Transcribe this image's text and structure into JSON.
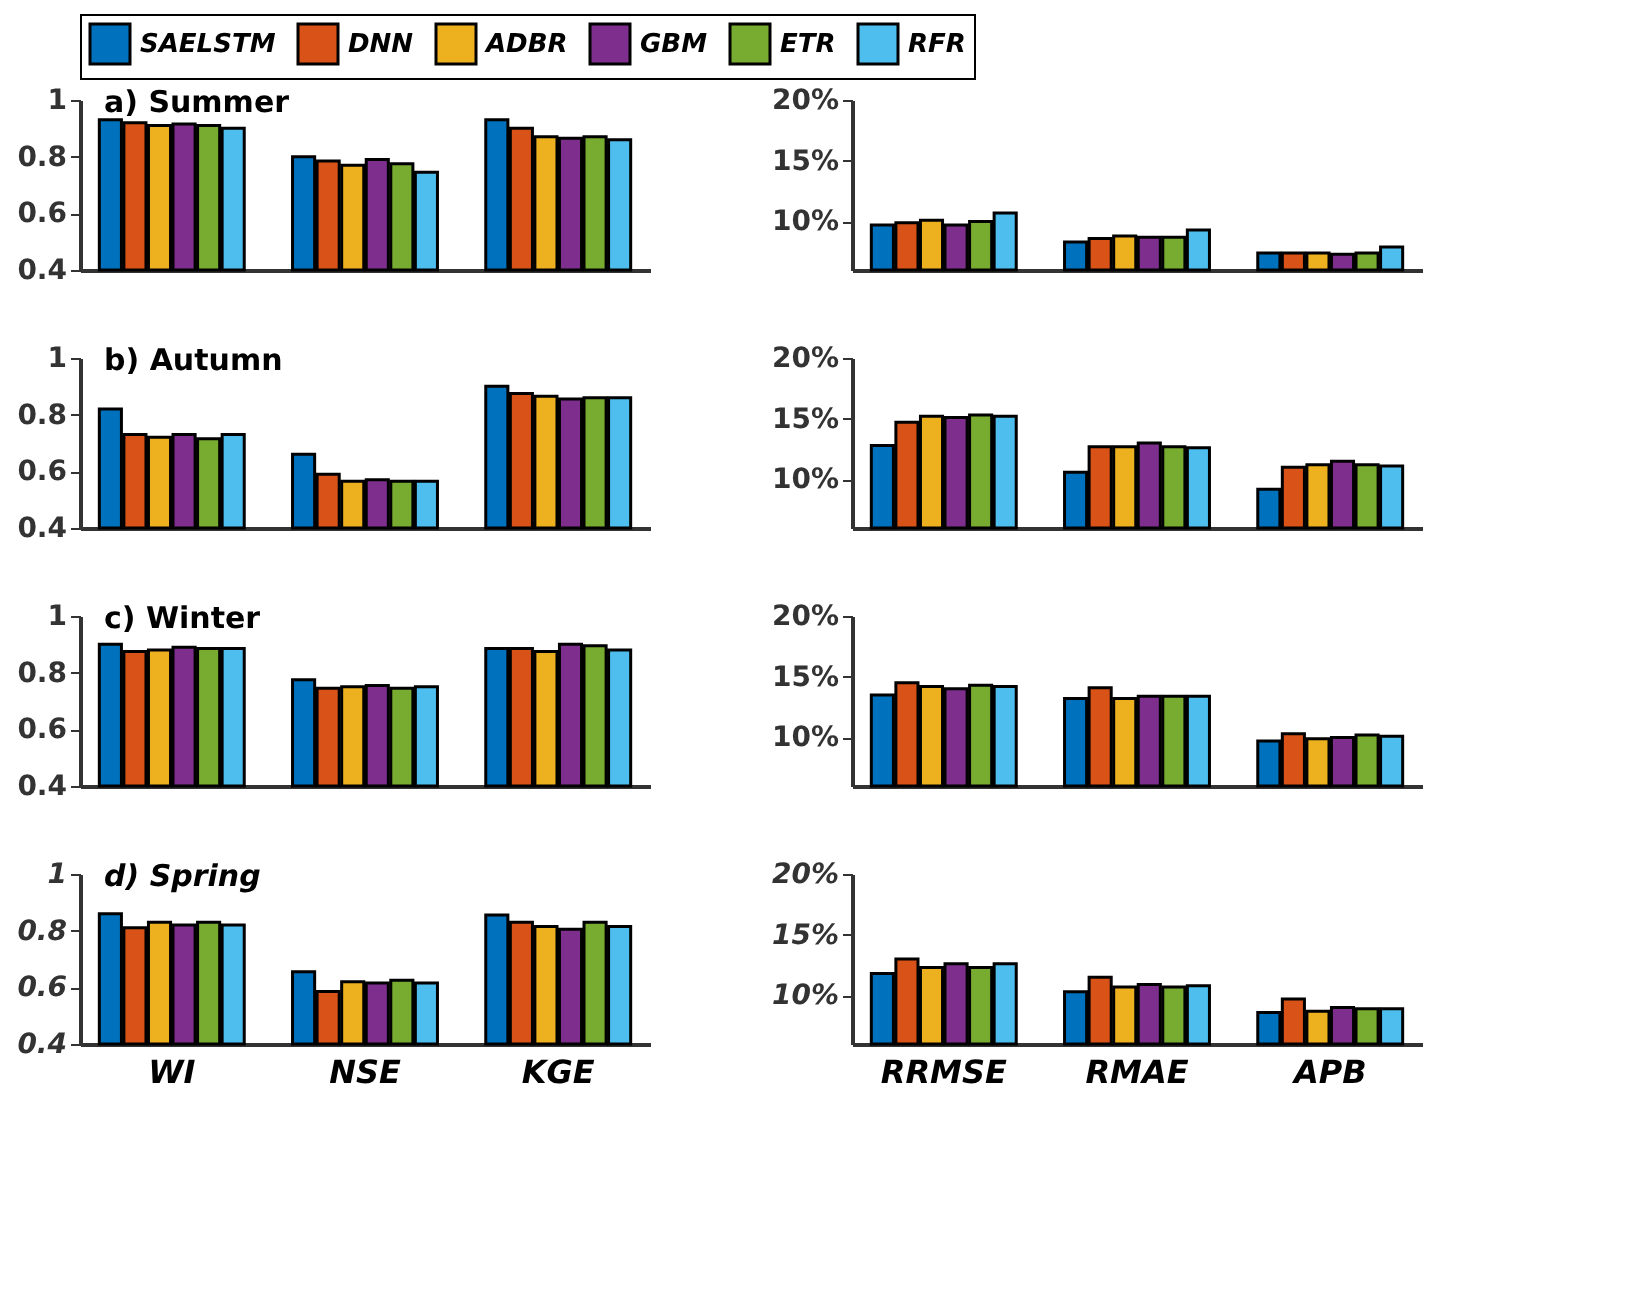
{
  "chart_data": [
    {
      "type": "bar",
      "title": "a) Summer",
      "categories": [
        null,
        null,
        null
      ],
      "ylim": [
        0.4,
        1
      ],
      "yticks": [
        0.4,
        0.6,
        0.8,
        1
      ],
      "tick_labels": "y",
      "legend": "top",
      "grid": false,
      "series": [
        {
          "name": "SAELSTM",
          "color": "#0072bd",
          "values": [
            0.93,
            0.8,
            0.93
          ]
        },
        {
          "name": "DNN",
          "color": "#d95319",
          "values": [
            0.92,
            0.785,
            0.9
          ]
        },
        {
          "name": "ADBR",
          "color": "#edb120",
          "values": [
            0.91,
            0.77,
            0.87
          ]
        },
        {
          "name": "GBM",
          "color": "#7e2f8e",
          "values": [
            0.915,
            0.79,
            0.865
          ]
        },
        {
          "name": "ETR",
          "color": "#77ac30",
          "values": [
            0.91,
            0.775,
            0.87
          ]
        },
        {
          "name": "RFR",
          "color": "#4dbeee",
          "values": [
            0.9,
            0.745,
            0.86
          ]
        }
      ]
    },
    {
      "type": "bar",
      "categories": [
        null,
        null,
        null
      ],
      "ylim": [
        6,
        20
      ],
      "yticks": [
        {
          "value": 10,
          "label": "10%"
        },
        {
          "value": 15,
          "label": "15%"
        },
        {
          "value": 20,
          "label": "20%"
        }
      ],
      "tick_labels": "y",
      "grid": false,
      "series": [
        {
          "color": "#0072bd",
          "values": [
            9.7,
            8.3,
            7.4
          ]
        },
        {
          "color": "#d95319",
          "values": [
            9.9,
            8.6,
            7.4
          ]
        },
        {
          "color": "#edb120",
          "values": [
            10.1,
            8.8,
            7.4
          ]
        },
        {
          "color": "#7e2f8e",
          "values": [
            9.7,
            8.7,
            7.3
          ]
        },
        {
          "color": "#77ac30",
          "values": [
            10.0,
            8.7,
            7.4
          ]
        },
        {
          "color": "#4dbeee",
          "values": [
            10.7,
            9.3,
            7.9
          ]
        }
      ]
    },
    {
      "type": "bar",
      "title": "b) Autumn",
      "categories": [
        null,
        null,
        null
      ],
      "ylim": [
        0.4,
        1
      ],
      "yticks": [
        0.4,
        0.6,
        0.8,
        1
      ],
      "tick_labels": "y",
      "grid": false,
      "series": [
        {
          "color": "#0072bd",
          "values": [
            0.82,
            0.66,
            0.9
          ]
        },
        {
          "color": "#d95319",
          "values": [
            0.73,
            0.59,
            0.875
          ]
        },
        {
          "color": "#edb120",
          "values": [
            0.72,
            0.565,
            0.865
          ]
        },
        {
          "color": "#7e2f8e",
          "values": [
            0.73,
            0.57,
            0.855
          ]
        },
        {
          "color": "#77ac30",
          "values": [
            0.715,
            0.565,
            0.86
          ]
        },
        {
          "color": "#4dbeee",
          "values": [
            0.73,
            0.565,
            0.86
          ]
        }
      ]
    },
    {
      "type": "bar",
      "categories": [
        null,
        null,
        null
      ],
      "ylim": [
        6,
        20
      ],
      "yticks": [
        {
          "value": 10,
          "label": "10%"
        },
        {
          "value": 15,
          "label": "15%"
        },
        {
          "value": 20,
          "label": "20%"
        }
      ],
      "tick_labels": "y",
      "grid": false,
      "series": [
        {
          "color": "#0072bd",
          "values": [
            12.8,
            10.6,
            9.2
          ]
        },
        {
          "color": "#d95319",
          "values": [
            14.7,
            12.7,
            11.0
          ]
        },
        {
          "color": "#edb120",
          "values": [
            15.2,
            12.7,
            11.2
          ]
        },
        {
          "color": "#7e2f8e",
          "values": [
            15.1,
            13.0,
            11.5
          ]
        },
        {
          "color": "#77ac30",
          "values": [
            15.3,
            12.7,
            11.2
          ]
        },
        {
          "color": "#4dbeee",
          "values": [
            15.2,
            12.6,
            11.1
          ]
        }
      ]
    },
    {
      "type": "bar",
      "title": "c) Winter",
      "categories": [
        null,
        null,
        null
      ],
      "ylim": [
        0.4,
        1
      ],
      "yticks": [
        0.4,
        0.6,
        0.8,
        1
      ],
      "tick_labels": "y",
      "grid": false,
      "series": [
        {
          "color": "#0072bd",
          "values": [
            0.9,
            0.775,
            0.885
          ]
        },
        {
          "color": "#d95319",
          "values": [
            0.875,
            0.745,
            0.885
          ]
        },
        {
          "color": "#edb120",
          "values": [
            0.88,
            0.75,
            0.875
          ]
        },
        {
          "color": "#7e2f8e",
          "values": [
            0.89,
            0.755,
            0.9
          ]
        },
        {
          "color": "#77ac30",
          "values": [
            0.885,
            0.745,
            0.895
          ]
        },
        {
          "color": "#4dbeee",
          "values": [
            0.885,
            0.75,
            0.88
          ]
        }
      ]
    },
    {
      "type": "bar",
      "categories": [
        null,
        null,
        null
      ],
      "ylim": [
        6,
        20
      ],
      "yticks": [
        {
          "value": 10,
          "label": "10%"
        },
        {
          "value": 15,
          "label": "15%"
        },
        {
          "value": 20,
          "label": "20%"
        }
      ],
      "tick_labels": "y",
      "grid": false,
      "series": [
        {
          "color": "#0072bd",
          "values": [
            13.5,
            13.2,
            9.7
          ]
        },
        {
          "color": "#d95319",
          "values": [
            14.5,
            14.1,
            10.3
          ]
        },
        {
          "color": "#edb120",
          "values": [
            14.2,
            13.2,
            9.9
          ]
        },
        {
          "color": "#7e2f8e",
          "values": [
            14.0,
            13.4,
            10.0
          ]
        },
        {
          "color": "#77ac30",
          "values": [
            14.3,
            13.4,
            10.2
          ]
        },
        {
          "color": "#4dbeee",
          "values": [
            14.2,
            13.4,
            10.1
          ]
        }
      ]
    },
    {
      "type": "bar",
      "title": "d) Spring",
      "categories": [
        "WI",
        "NSE",
        "KGE"
      ],
      "ylim": [
        0.4,
        1
      ],
      "yticks": [
        0.4,
        0.6,
        0.8,
        1
      ],
      "grid": false,
      "series": [
        {
          "color": "#0072bd",
          "values": [
            0.86,
            0.655,
            0.855
          ]
        },
        {
          "color": "#d95319",
          "values": [
            0.81,
            0.585,
            0.83
          ]
        },
        {
          "color": "#edb120",
          "values": [
            0.83,
            0.62,
            0.815
          ]
        },
        {
          "color": "#7e2f8e",
          "values": [
            0.82,
            0.615,
            0.805
          ]
        },
        {
          "color": "#77ac30",
          "values": [
            0.83,
            0.625,
            0.83
          ]
        },
        {
          "color": "#4dbeee",
          "values": [
            0.82,
            0.615,
            0.815
          ]
        }
      ]
    },
    {
      "type": "bar",
      "categories": [
        "RRMSE",
        "RMAE",
        "APB"
      ],
      "ylim": [
        6,
        20
      ],
      "yticks": [
        {
          "value": 10,
          "label": "10%"
        },
        {
          "value": 15,
          "label": "15%"
        },
        {
          "value": 20,
          "label": "20%"
        }
      ],
      "grid": false,
      "series": [
        {
          "color": "#0072bd",
          "values": [
            11.8,
            10.3,
            8.6
          ]
        },
        {
          "color": "#d95319",
          "values": [
            13.0,
            11.5,
            9.7
          ]
        },
        {
          "color": "#edb120",
          "values": [
            12.3,
            10.7,
            8.7
          ]
        },
        {
          "color": "#7e2f8e",
          "values": [
            12.6,
            10.9,
            9.0
          ]
        },
        {
          "color": "#77ac30",
          "values": [
            12.3,
            10.7,
            8.9
          ]
        },
        {
          "color": "#4dbeee",
          "values": [
            12.6,
            10.8,
            8.9
          ]
        }
      ]
    }
  ]
}
